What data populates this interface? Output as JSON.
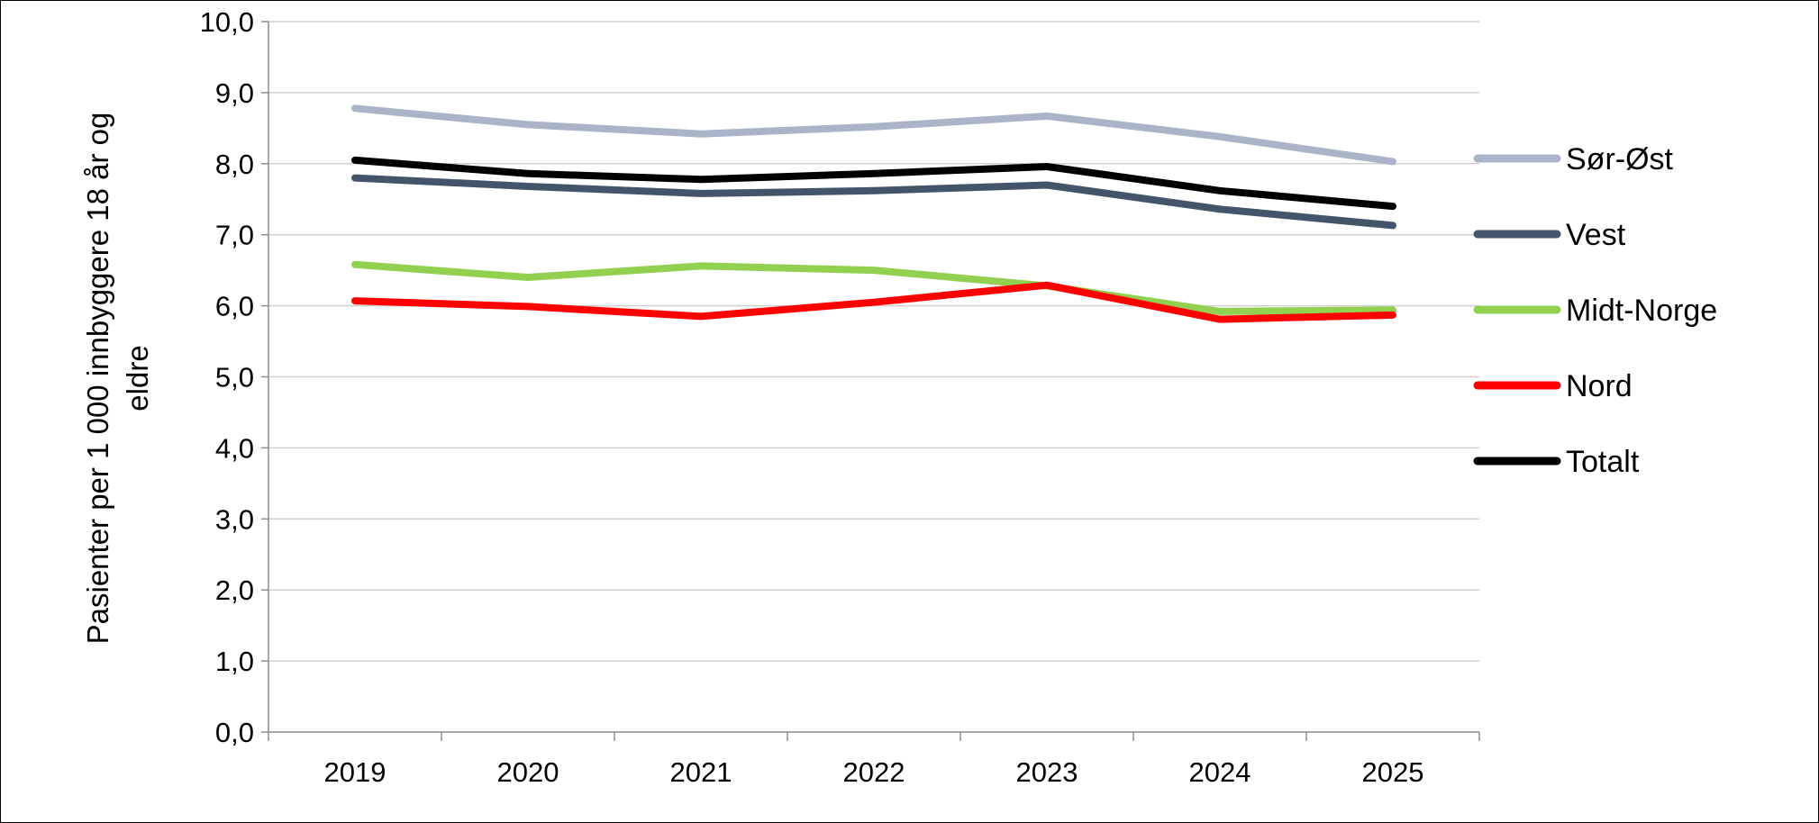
{
  "chart_data": {
    "type": "line",
    "title": "",
    "xlabel": "",
    "ylabel": "Pasienter per 1 000  innbyggere 18 år og eldre",
    "ylabel_lines": [
      "Pasienter per 1 000  innbyggere 18 år og",
      "eldre"
    ],
    "categories": [
      "2019",
      "2020",
      "2021",
      "2022",
      "2023",
      "2024",
      "2025"
    ],
    "ylim": [
      0,
      10
    ],
    "yticks": [
      "0,0",
      "1,0",
      "2,0",
      "3,0",
      "4,0",
      "5,0",
      "6,0",
      "7,0",
      "8,0",
      "9,0",
      "10,0"
    ],
    "grid": true,
    "legend_position": "right",
    "series": [
      {
        "name": "Sør-Øst",
        "color": "#aab4c8",
        "values": [
          8.78,
          8.55,
          8.42,
          8.52,
          8.67,
          8.38,
          8.03
        ]
      },
      {
        "name": "Vest",
        "color": "#44546a",
        "values": [
          7.8,
          7.68,
          7.58,
          7.62,
          7.7,
          7.36,
          7.13
        ]
      },
      {
        "name": "Midt-Norge",
        "color": "#92d050",
        "values": [
          6.58,
          6.4,
          6.56,
          6.5,
          6.28,
          5.92,
          5.94
        ]
      },
      {
        "name": "Nord",
        "color": "#ff0000",
        "values": [
          6.07,
          5.99,
          5.85,
          6.05,
          6.29,
          5.81,
          5.87
        ]
      },
      {
        "name": "Totalt",
        "color": "#000000",
        "values": [
          8.05,
          7.86,
          7.78,
          7.86,
          7.96,
          7.62,
          7.4
        ]
      }
    ]
  }
}
